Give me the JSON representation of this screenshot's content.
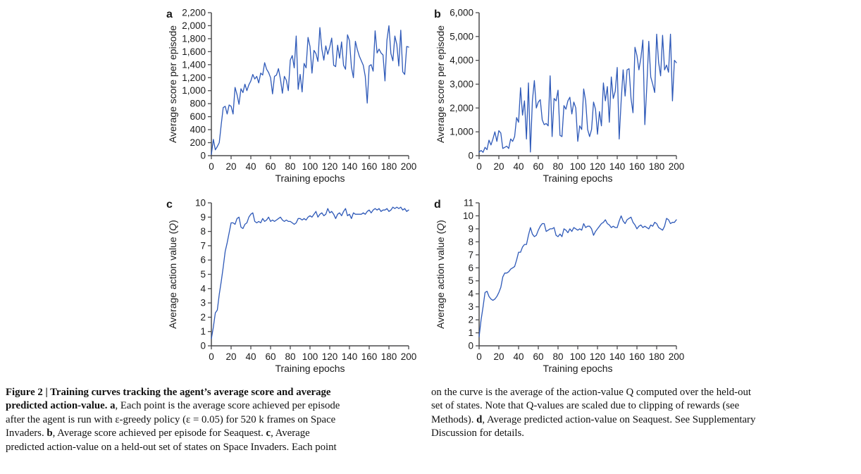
{
  "figure": {
    "name": "Figure 2",
    "caption": {
      "columns": [
        {
          "lines": [
            [
              {
                "t": "Figure 2 | Training curves tracking the agent’s average score and average",
                "b": true
              }
            ],
            [
              {
                "t": "predicted action-value. a",
                "b": true
              },
              {
                "t": ", Each point is the average score achieved per episode",
                "b": false
              }
            ],
            [
              {
                "t": "after the agent is run with ε-greedy policy (ε = 0.05) for 520 k frames on Space",
                "b": false
              }
            ],
            [
              {
                "t": "Invaders. ",
                "b": false
              },
              {
                "t": "b",
                "b": true
              },
              {
                "t": ", Average score achieved per episode for Seaquest. ",
                "b": false
              },
              {
                "t": "c",
                "b": true
              },
              {
                "t": ", Average",
                "b": false
              }
            ],
            [
              {
                "t": "predicted action-value on a held-out set of states on Space Invaders. Each point",
                "b": false
              }
            ]
          ]
        },
        {
          "lines": [
            [
              {
                "t": "on the curve is the average of the action-value Q computed over the held-out",
                "b": false
              }
            ],
            [
              {
                "t": "set of states. Note that Q-values are scaled due to clipping of rewards (see",
                "b": false
              }
            ],
            [
              {
                "t": "Methods). ",
                "b": false
              },
              {
                "t": "d",
                "b": true
              },
              {
                "t": ", Average predicted action-value on Seaquest. See Supplementary",
                "b": false
              }
            ],
            [
              {
                "t": "Discussion for details.",
                "b": false
              }
            ]
          ]
        }
      ]
    }
  },
  "chart_data": [
    {
      "id": "a",
      "panel_letter": "a",
      "type": "line",
      "title": "",
      "xlabel": "Training epochs",
      "ylabel": "Average score per episode",
      "xlim": [
        0,
        200
      ],
      "ylim": [
        0,
        2200
      ],
      "xtick_labels": [
        "0",
        "20",
        "40",
        "60",
        "80",
        "100",
        "120",
        "140",
        "160",
        "180",
        "200"
      ],
      "ytick_labels": [
        "0",
        "200",
        "400",
        "600",
        "800",
        "1,000",
        "1,200",
        "1,400",
        "1,600",
        "1,800",
        "2,000",
        "2,200"
      ],
      "grid": false,
      "legend": null,
      "line_color": "#2e59b8",
      "x_start": 0,
      "x_step": 2,
      "values": [
        20,
        250,
        90,
        140,
        200,
        480,
        740,
        760,
        640,
        780,
        760,
        640,
        1050,
        940,
        790,
        1030,
        970,
        1100,
        1000,
        1090,
        1150,
        1250,
        1180,
        1220,
        1120,
        1270,
        1240,
        1430,
        1330,
        1280,
        1200,
        950,
        1220,
        1240,
        1340,
        1180,
        960,
        1220,
        1160,
        1000,
        1470,
        1540,
        1350,
        1840,
        1020,
        1250,
        980,
        1420,
        1350,
        1820,
        1680,
        1270,
        1620,
        1570,
        1450,
        1970,
        1640,
        1470,
        1690,
        1560,
        1670,
        1810,
        1390,
        1370,
        1700,
        1500,
        1750,
        1390,
        1330,
        1860,
        1770,
        1360,
        1200,
        1760,
        1630,
        1530,
        1460,
        1390,
        1220,
        810,
        1380,
        1400,
        1300,
        1920,
        1580,
        1640,
        1580,
        1550,
        1150,
        1780,
        2000,
        1570,
        1460,
        1840,
        1710,
        1380,
        1930,
        1290,
        1250,
        1680,
        1670
      ]
    },
    {
      "id": "b",
      "panel_letter": "b",
      "type": "line",
      "title": "",
      "xlabel": "Training epochs",
      "ylabel": "Average score per episode",
      "xlim": [
        0,
        200
      ],
      "ylim": [
        0,
        6000
      ],
      "xtick_labels": [
        "0",
        "20",
        "40",
        "60",
        "80",
        "100",
        "120",
        "140",
        "160",
        "180",
        "200"
      ],
      "ytick_labels": [
        "0",
        "1,000",
        "2,000",
        "3,000",
        "4,000",
        "5,000",
        "6,000"
      ],
      "grid": false,
      "legend": null,
      "line_color": "#2e59b8",
      "x_start": 0,
      "x_step": 2,
      "values": [
        150,
        220,
        140,
        350,
        250,
        650,
        450,
        700,
        1000,
        600,
        1050,
        950,
        300,
        350,
        400,
        300,
        700,
        600,
        800,
        1600,
        1400,
        2850,
        1700,
        2300,
        700,
        3050,
        150,
        2300,
        3150,
        2000,
        2250,
        2350,
        1500,
        1300,
        1350,
        1250,
        3350,
        800,
        2400,
        2300,
        2750,
        850,
        800,
        2100,
        1950,
        2300,
        2450,
        1750,
        2250,
        2000,
        600,
        1250,
        1100,
        2800,
        2300,
        1100,
        800,
        1100,
        2250,
        1950,
        900,
        1850,
        1250,
        3050,
        2300,
        2900,
        1400,
        3300,
        2400,
        2700,
        3700,
        700,
        2300,
        3600,
        2500,
        3600,
        3650,
        2400,
        1800,
        4550,
        4200,
        3600,
        4100,
        4850,
        1300,
        2900,
        4800,
        3300,
        3000,
        2650,
        5100,
        3900,
        3350,
        5050,
        3600,
        3800,
        3500,
        5100,
        2300,
        4000,
        3900
      ]
    },
    {
      "id": "c",
      "panel_letter": "c",
      "type": "line",
      "title": "",
      "xlabel": "Training epochs",
      "ylabel": "Average action value (Q)",
      "xlim": [
        0,
        200
      ],
      "ylim": [
        0,
        10
      ],
      "xtick_labels": [
        "0",
        "20",
        "40",
        "60",
        "80",
        "100",
        "120",
        "140",
        "160",
        "180",
        "200"
      ],
      "ytick_labels": [
        "0",
        "1",
        "2",
        "3",
        "4",
        "5",
        "6",
        "7",
        "8",
        "9",
        "10"
      ],
      "grid": false,
      "legend": null,
      "line_color": "#2e59b8",
      "x_start": 0,
      "x_step": 2,
      "values": [
        0.5,
        1.3,
        2.3,
        2.5,
        3.6,
        4.5,
        5.5,
        6.6,
        7.2,
        7.9,
        8.6,
        8.6,
        8.5,
        8.9,
        9.0,
        8.3,
        8.2,
        8.5,
        8.6,
        9.0,
        9.2,
        9.3,
        8.7,
        8.6,
        8.7,
        8.6,
        8.9,
        8.7,
        8.8,
        9.0,
        8.7,
        8.8,
        8.7,
        8.8,
        8.9,
        9.0,
        8.8,
        8.7,
        8.8,
        8.7,
        8.7,
        8.6,
        8.5,
        8.6,
        8.9,
        8.9,
        8.8,
        8.9,
        8.8,
        9.0,
        9.1,
        9.0,
        9.2,
        9.4,
        9.0,
        9.2,
        9.3,
        9.1,
        9.2,
        9.6,
        9.3,
        9.4,
        9.2,
        8.9,
        9.2,
        9.3,
        9.1,
        9.4,
        9.6,
        9.1,
        9.2,
        8.9,
        9.3,
        9.2,
        9.2,
        9.2,
        9.2,
        9.3,
        9.2,
        9.4,
        9.5,
        9.3,
        9.5,
        9.6,
        9.5,
        9.6,
        9.4,
        9.5,
        9.5,
        9.6,
        9.4,
        9.5,
        9.7,
        9.6,
        9.7,
        9.6,
        9.7,
        9.5,
        9.6,
        9.4,
        9.5
      ]
    },
    {
      "id": "d",
      "panel_letter": "d",
      "type": "line",
      "title": "",
      "xlabel": "Training epochs",
      "ylabel": "Average action value (Q)",
      "xlim": [
        0,
        200
      ],
      "ylim": [
        0,
        11
      ],
      "xtick_labels": [
        "0",
        "20",
        "40",
        "60",
        "80",
        "100",
        "120",
        "140",
        "160",
        "180",
        "200"
      ],
      "ytick_labels": [
        "0",
        "1",
        "2",
        "3",
        "4",
        "5",
        "6",
        "7",
        "8",
        "9",
        "10",
        "11"
      ],
      "grid": false,
      "legend": null,
      "line_color": "#2e59b8",
      "x_start": 0,
      "x_step": 2,
      "values": [
        0.7,
        2.0,
        3.0,
        4.1,
        4.2,
        3.8,
        3.6,
        3.5,
        3.6,
        3.8,
        4.1,
        4.5,
        5.3,
        5.6,
        5.6,
        5.7,
        5.9,
        6.0,
        6.1,
        6.6,
        7.2,
        7.2,
        7.6,
        7.8,
        7.8,
        8.5,
        9.1,
        8.6,
        8.4,
        8.5,
        8.9,
        9.2,
        9.4,
        9.4,
        8.8,
        8.9,
        9.0,
        9.0,
        9.1,
        8.5,
        8.4,
        8.6,
        8.4,
        9.0,
        8.9,
        8.7,
        9.0,
        8.8,
        9.1,
        9.0,
        8.9,
        9.0,
        8.9,
        9.4,
        9.1,
        9.2,
        9.2,
        9.0,
        8.5,
        8.8,
        9.0,
        9.2,
        9.4,
        9.5,
        9.7,
        9.4,
        9.3,
        9.1,
        9.2,
        9.1,
        9.1,
        9.6,
        10.0,
        9.6,
        9.4,
        9.7,
        9.8,
        9.9,
        9.5,
        9.3,
        9.0,
        9.2,
        9.3,
        9.1,
        9.2,
        9.1,
        9.0,
        9.3,
        9.2,
        9.5,
        9.4,
        9.1,
        9.0,
        8.9,
        9.2,
        9.8,
        9.7,
        9.4,
        9.5,
        9.5,
        9.7
      ]
    }
  ],
  "style": {
    "axis_color": "#4b4b4d",
    "text_color": "#1a1a1a"
  }
}
